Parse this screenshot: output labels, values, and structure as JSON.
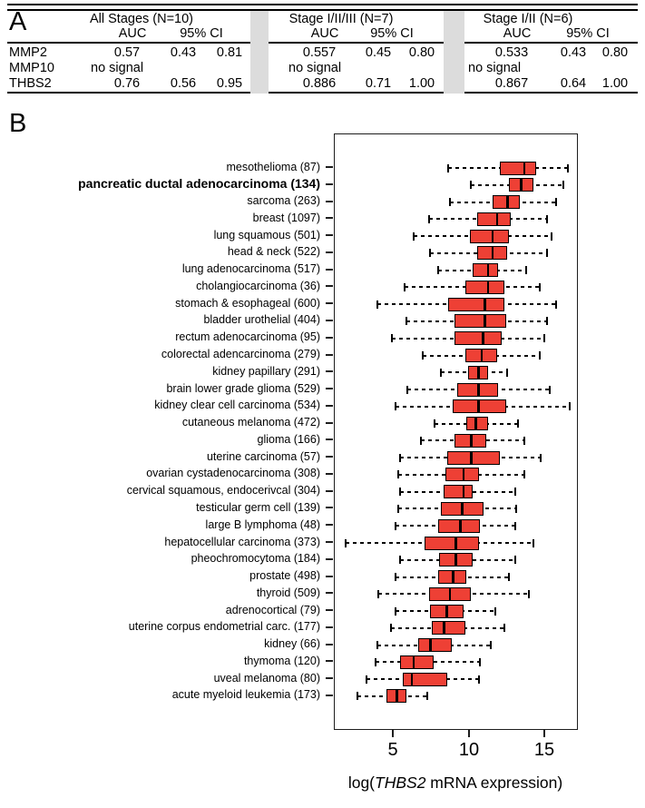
{
  "panel_a": {
    "label": "A",
    "groups": [
      {
        "title": "All Stages (N=10)",
        "auc_header": "AUC",
        "ci_header": "95% CI"
      },
      {
        "title": "Stage I/II/III (N=7)",
        "auc_header": "AUC",
        "ci_header": "95% CI"
      },
      {
        "title": "Stage I/II (N=6)",
        "auc_header": "AUC",
        "ci_header": "95% CI"
      }
    ],
    "rows": [
      {
        "name": "MMP2",
        "groups": [
          {
            "auc": "0.57",
            "lo": "0.43",
            "hi": "0.81"
          },
          {
            "auc": "0.557",
            "lo": "0.45",
            "hi": "0.80"
          },
          {
            "auc": "0.533",
            "lo": "0.43",
            "hi": "0.80"
          }
        ]
      },
      {
        "name": "MMP10",
        "no_signal": "no signal"
      },
      {
        "name": "THBS2",
        "groups": [
          {
            "auc": "0.76",
            "lo": "0.56",
            "hi": "0.95"
          },
          {
            "auc": "0.886",
            "lo": "0.71",
            "hi": "1.00"
          },
          {
            "auc": "0.867",
            "lo": "0.64",
            "hi": "1.00"
          }
        ]
      }
    ]
  },
  "panel_b": {
    "label": "B",
    "xlabel_prefix": "log(",
    "xlabel_gene": "THBS2",
    "xlabel_suffix": " mRNA expression)",
    "x_tick_labels": [
      "5",
      "10",
      "15"
    ]
  },
  "chart_data": {
    "type": "boxplot",
    "orientation": "horizontal",
    "title": "",
    "xlabel": "log(THBS2 mRNA expression)",
    "ylabel": "",
    "x_ticks": [
      5,
      10,
      15
    ],
    "xlim": [
      1.1,
      17.2
    ],
    "grid": false,
    "box_fill_color": "#ee4035",
    "box_edge_color": "#000000",
    "whisker_style": "dashed",
    "highlighted_category": "pancreatic ductal adenocarcinoma (134)",
    "boxes": [
      {
        "label": "mesothelioma (87)",
        "lo": 8.6,
        "q1": 12.0,
        "med": 13.6,
        "q3": 14.4,
        "hi": 16.5,
        "bold": false
      },
      {
        "label": "pancreatic ductal adenocarcinoma (134)",
        "lo": 10.1,
        "q1": 12.6,
        "med": 13.4,
        "q3": 14.2,
        "hi": 16.2,
        "bold": true
      },
      {
        "label": "sarcoma (263)",
        "lo": 8.7,
        "q1": 11.5,
        "med": 12.5,
        "q3": 13.3,
        "hi": 15.7,
        "bold": false
      },
      {
        "label": "breast (1097)",
        "lo": 7.3,
        "q1": 10.5,
        "med": 11.8,
        "q3": 12.7,
        "hi": 15.1,
        "bold": false
      },
      {
        "label": "lung squamous (501)",
        "lo": 6.3,
        "q1": 10.0,
        "med": 11.5,
        "q3": 12.6,
        "hi": 15.4,
        "bold": false
      },
      {
        "label": "head & neck (522)",
        "lo": 7.4,
        "q1": 10.5,
        "med": 11.5,
        "q3": 12.5,
        "hi": 15.1,
        "bold": false
      },
      {
        "label": "lung adenocarcinoma (517)",
        "lo": 7.9,
        "q1": 10.2,
        "med": 11.2,
        "q3": 11.9,
        "hi": 13.7,
        "bold": false
      },
      {
        "label": "cholangiocarcinoma (36)",
        "lo": 5.7,
        "q1": 9.7,
        "med": 11.2,
        "q3": 12.3,
        "hi": 14.6,
        "bold": false
      },
      {
        "label": "stomach & esophageal (600)",
        "lo": 3.9,
        "q1": 8.6,
        "med": 11.0,
        "q3": 12.3,
        "hi": 15.7,
        "bold": false
      },
      {
        "label": "bladder urothelial (404)",
        "lo": 5.8,
        "q1": 9.0,
        "med": 11.0,
        "q3": 12.4,
        "hi": 15.1,
        "bold": false
      },
      {
        "label": "rectum adenocarcinoma (95)",
        "lo": 4.9,
        "q1": 9.0,
        "med": 10.9,
        "q3": 12.1,
        "hi": 14.9,
        "bold": false
      },
      {
        "label": "colorectal adencarcinoma (279)",
        "lo": 6.9,
        "q1": 9.7,
        "med": 10.8,
        "q3": 11.8,
        "hi": 14.6,
        "bold": false
      },
      {
        "label": "kidney papillary (291)",
        "lo": 8.1,
        "q1": 9.9,
        "med": 10.6,
        "q3": 11.2,
        "hi": 12.5,
        "bold": false
      },
      {
        "label": "brain lower grade glioma (529)",
        "lo": 5.9,
        "q1": 9.2,
        "med": 10.6,
        "q3": 11.9,
        "hi": 15.3,
        "bold": false
      },
      {
        "label": "kidney clear cell carcinoma (534)",
        "lo": 5.1,
        "q1": 8.9,
        "med": 10.6,
        "q3": 12.4,
        "hi": 16.6,
        "bold": false
      },
      {
        "label": "cutaneous melanoma (472)",
        "lo": 7.7,
        "q1": 9.8,
        "med": 10.4,
        "q3": 11.2,
        "hi": 13.2,
        "bold": false
      },
      {
        "label": "glioma (166)",
        "lo": 6.8,
        "q1": 9.0,
        "med": 10.1,
        "q3": 11.1,
        "hi": 13.6,
        "bold": false
      },
      {
        "label": "uterine carcinoma (57)",
        "lo": 5.4,
        "q1": 8.5,
        "med": 10.1,
        "q3": 12.0,
        "hi": 14.7,
        "bold": false
      },
      {
        "label": "ovarian cystadenocarcinoma (308)",
        "lo": 5.3,
        "q1": 8.4,
        "med": 9.6,
        "q3": 10.6,
        "hi": 13.6,
        "bold": false
      },
      {
        "label": "cervical squamous, endocerivcal (304)",
        "lo": 5.4,
        "q1": 8.3,
        "med": 9.6,
        "q3": 10.2,
        "hi": 13.0,
        "bold": false
      },
      {
        "label": "testicular germ cell (139)",
        "lo": 5.3,
        "q1": 8.1,
        "med": 9.5,
        "q3": 10.9,
        "hi": 13.1,
        "bold": false
      },
      {
        "label": "large B lymphoma (48)",
        "lo": 5.1,
        "q1": 7.9,
        "med": 9.4,
        "q3": 10.7,
        "hi": 13.0,
        "bold": false
      },
      {
        "label": "hepatocellular carcinoma (373)",
        "lo": 1.8,
        "q1": 7.0,
        "med": 9.1,
        "q3": 10.6,
        "hi": 14.2,
        "bold": false
      },
      {
        "label": "pheochromocytoma (184)",
        "lo": 5.4,
        "q1": 8.0,
        "med": 9.1,
        "q3": 10.2,
        "hi": 13.0,
        "bold": false
      },
      {
        "label": "prostate (498)",
        "lo": 5.1,
        "q1": 7.9,
        "med": 8.9,
        "q3": 9.8,
        "hi": 12.6,
        "bold": false
      },
      {
        "label": "thyroid (509)",
        "lo": 4.0,
        "q1": 7.3,
        "med": 8.7,
        "q3": 10.1,
        "hi": 13.9,
        "bold": false
      },
      {
        "label": "adrenocortical (79)",
        "lo": 5.1,
        "q1": 7.4,
        "med": 8.5,
        "q3": 9.6,
        "hi": 11.7,
        "bold": false
      },
      {
        "label": "uterine corpus endometrial carc. (177)",
        "lo": 4.8,
        "q1": 7.5,
        "med": 8.3,
        "q3": 9.7,
        "hi": 12.3,
        "bold": false
      },
      {
        "label": "kidney (66)",
        "lo": 3.9,
        "q1": 6.6,
        "med": 7.4,
        "q3": 8.8,
        "hi": 11.4,
        "bold": false
      },
      {
        "label": "thymoma (120)",
        "lo": 3.8,
        "q1": 5.4,
        "med": 6.3,
        "q3": 7.6,
        "hi": 10.7,
        "bold": false
      },
      {
        "label": "uveal melanoma (80)",
        "lo": 3.2,
        "q1": 5.6,
        "med": 6.2,
        "q3": 8.5,
        "hi": 10.6,
        "bold": false
      },
      {
        "label": "acute myeloid leukemia (173)",
        "lo": 2.6,
        "q1": 4.5,
        "med": 5.2,
        "q3": 5.8,
        "hi": 7.2,
        "bold": false
      }
    ]
  }
}
